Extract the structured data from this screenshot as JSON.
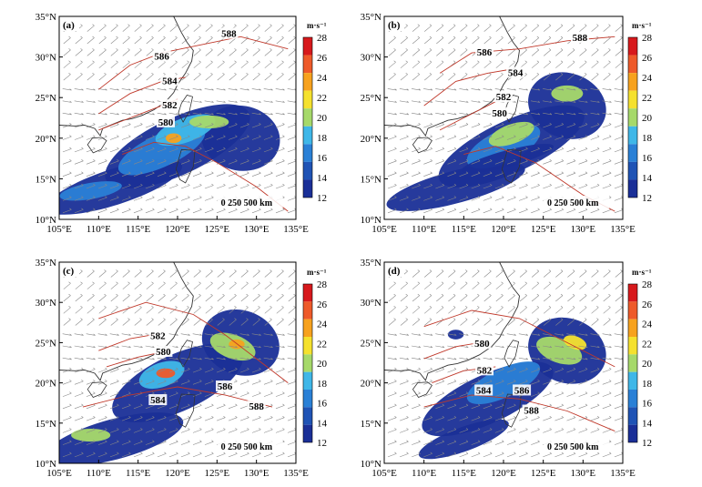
{
  "figure": {
    "xticks": [
      "105°E",
      "110°E",
      "115°E",
      "120°E",
      "125°E",
      "130°E",
      "135°E"
    ],
    "yticks": [
      "35°N",
      "30°N",
      "25°N",
      "20°N",
      "15°N",
      "10°N"
    ],
    "colorbar": {
      "unit": "m·s⁻¹",
      "levels": [
        "28",
        "26",
        "24",
        "22",
        "20",
        "18",
        "16",
        "14",
        "12"
      ],
      "colors": [
        "#d7191c",
        "#ee5a2a",
        "#f7a21e",
        "#f5e12e",
        "#a6d96a",
        "#3fb7e8",
        "#2a80d6",
        "#1f53b5",
        "#1a2f97"
      ]
    },
    "scale_bar": {
      "label": "0  250 500 km"
    },
    "colors": {
      "coast": "#333333",
      "contour": "#c0392b",
      "vector": "#888888"
    },
    "panels": [
      {
        "id": "a",
        "label": "(a)",
        "contours": [
          {
            "label": "588",
            "lon": 126.5,
            "lat": 32.8
          },
          {
            "label": "586",
            "lon": 118.0,
            "lat": 30.0
          },
          {
            "label": "584",
            "lon": 119.0,
            "lat": 27.0
          },
          {
            "label": "582",
            "lon": 119.0,
            "lat": 24.0
          },
          {
            "label": "580",
            "lon": 118.5,
            "lat": 21.9
          }
        ]
      },
      {
        "id": "b",
        "label": "(b)",
        "contours": [
          {
            "label": "588",
            "lon": 129.6,
            "lat": 32.3
          },
          {
            "label": "586",
            "lon": 117.6,
            "lat": 30.5
          },
          {
            "label": "584",
            "lon": 121.5,
            "lat": 28.0
          },
          {
            "label": "582",
            "lon": 120.0,
            "lat": 25.0
          },
          {
            "label": "580",
            "lon": 119.5,
            "lat": 23.0
          }
        ]
      },
      {
        "id": "c",
        "label": "(c)",
        "contours": [
          {
            "label": "582",
            "lon": 117.5,
            "lat": 25.8
          },
          {
            "label": "580",
            "lon": 118.2,
            "lat": 23.8
          },
          {
            "label": "584",
            "lon": 117.5,
            "lat": 17.8
          },
          {
            "label": "586",
            "lon": 126.0,
            "lat": 19.5
          },
          {
            "label": "588",
            "lon": 130.0,
            "lat": 17.0
          }
        ]
      },
      {
        "id": "d",
        "label": "(d)",
        "contours": [
          {
            "label": "580",
            "lon": 117.3,
            "lat": 24.8
          },
          {
            "label": "582",
            "lon": 117.6,
            "lat": 21.5
          },
          {
            "label": "584",
            "lon": 117.5,
            "lat": 19.0
          },
          {
            "label": "586",
            "lon": 122.3,
            "lat": 19.0
          },
          {
            "label": "588",
            "lon": 123.5,
            "lat": 16.5
          }
        ]
      }
    ]
  }
}
